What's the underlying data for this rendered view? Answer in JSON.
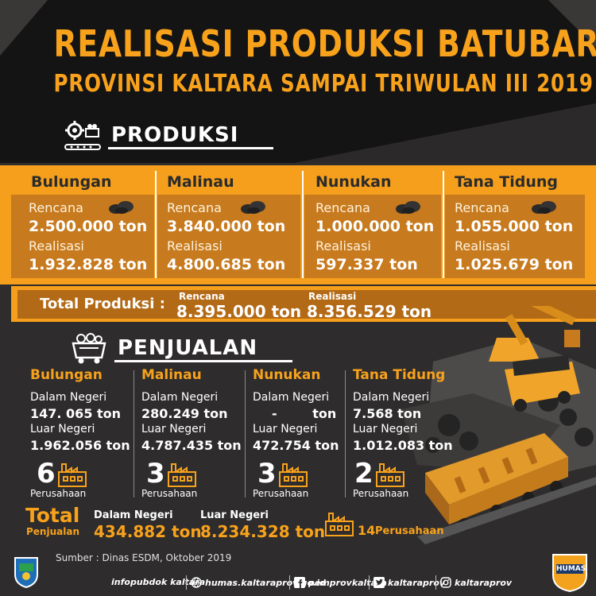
{
  "title": {
    "line1": "REALISASI PRODUKSI BATUBARA",
    "line2": "PROVINSI KALTARA SAMPAI TRIWULAN III 2019"
  },
  "produksi": {
    "heading": "PRODUKSI",
    "rencana_label": "Rencana",
    "realisasi_label": "Realisasi",
    "regions": [
      {
        "name": "Bulungan",
        "rencana": "2.500.000 ton",
        "realisasi": "1.932.828 ton"
      },
      {
        "name": "Malinau",
        "rencana": "3.840.000 ton",
        "realisasi": "4.800.685 ton"
      },
      {
        "name": "Nunukan",
        "rencana": "1.000.000 ton",
        "realisasi": "597.337 ton"
      },
      {
        "name": "Tana Tidung",
        "rencana": "1.055.000 ton",
        "realisasi": "1.025.679 ton"
      }
    ],
    "total": {
      "label": "Total Produksi :",
      "rencana_label": "Rencana",
      "rencana": "8.395.000 ton",
      "realisasi_label": "Realisasi",
      "realisasi": "8.356.529 ton"
    }
  },
  "penjualan": {
    "heading": "PENJUALAN",
    "dalam_label": "Dalam Negeri",
    "luar_label": "Luar Negeri",
    "perusahaan_label": "Perusahaan",
    "regions": [
      {
        "name": "Bulungan",
        "dalam": "147. 065 ton",
        "luar": "1.962.056 ton",
        "count": "6"
      },
      {
        "name": "Malinau",
        "dalam": "280.249 ton",
        "luar": "4.787.435 ton",
        "count": "3"
      },
      {
        "name": "Nunukan",
        "dalam": "-        ton",
        "luar": "472.754 ton",
        "count": "3"
      },
      {
        "name": "Tana Tidung",
        "dalam": "7.568 ton",
        "luar": "1.012.083 ton",
        "count": "2"
      }
    ],
    "total": {
      "label": "Total",
      "sublabel": "Penjualan",
      "dalam_label": "Dalam Negeri",
      "dalam": "434.882 ton",
      "luar_label": "Luar Negeri",
      "luar": "8.234.328 ton",
      "count": "14",
      "count_label": "Perusahaan"
    }
  },
  "source": "Sumber : Dinas ESDM, Oktober 2019",
  "footer": {
    "items": [
      "infopubdok kaltara",
      "humas.kaltaraprov.go.id",
      "pemprovkaltara",
      "kaltaraprov",
      "kaltaraprov"
    ],
    "icons": [
      "globe-icon",
      "globe-icon",
      "facebook-icon",
      "twitter-icon",
      "instagram-icon"
    ],
    "logo_text": "HUMAS"
  },
  "colors": {
    "accent": "#f8a21c",
    "band": "#f59f1c",
    "band_box": "#c77a1e",
    "dark": "#2e2c2c",
    "black": "#151414"
  }
}
